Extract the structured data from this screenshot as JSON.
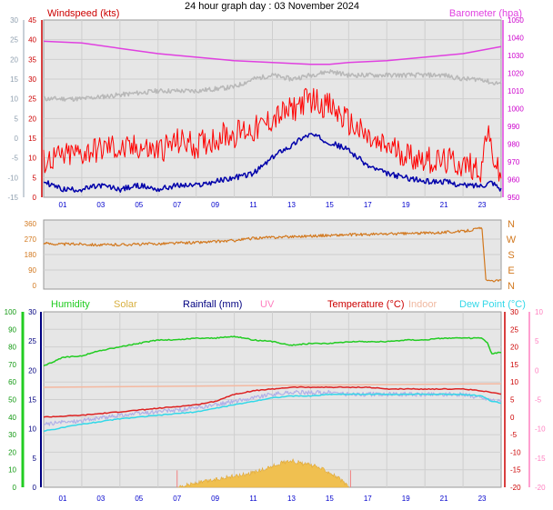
{
  "title": "24 hour graph day : 03 November 2024",
  "colors": {
    "wind": "#ff0000",
    "gust_line": "#0000aa",
    "baro": "#e040e0",
    "gray": "#b8b8b8",
    "dir": "#d2781e",
    "humidity": "#22cc22",
    "solar": "#f0c050",
    "rain": "#000080",
    "uv": "#ff80c0",
    "temp": "#dd2222",
    "indoor": "#f4b8a0",
    "dew": "#33d8e8",
    "grid": "#cfcfcf",
    "bg": "#e6e6e6",
    "axis_blue": "#0000cc",
    "axis_red": "#cc0000"
  },
  "chart_data": [
    {
      "type": "line",
      "title": "",
      "labels": {
        "left": "Windspeed (kts)",
        "right": "Barometer (hpa)"
      },
      "y_left": {
        "min": 0,
        "max": 45,
        "ticks": [
          "0",
          "5",
          "10",
          "15",
          "20",
          "25",
          "30",
          "35",
          "40",
          "45"
        ]
      },
      "y_right": {
        "min": 950,
        "max": 1050,
        "ticks": [
          "950",
          "960",
          "970",
          "980",
          "990",
          "1000",
          "1010",
          "1020",
          "1030",
          "1040",
          "1050"
        ]
      },
      "y_outer": {
        "ticks": [
          "-15",
          "-10",
          "-5",
          "0",
          "5",
          "10",
          "15",
          "20",
          "25",
          "30"
        ]
      },
      "x_ticks": [
        "01",
        "03",
        "05",
        "07",
        "09",
        "11",
        "13",
        "15",
        "17",
        "19",
        "21",
        "23"
      ],
      "series": [
        {
          "key": "gust",
          "x": [
            0,
            0.5,
            1,
            1.5,
            2,
            2.5,
            3,
            3.5,
            4,
            4.5,
            5,
            5.5,
            6,
            6.5,
            7,
            7.5,
            8,
            8.5,
            9,
            9.5,
            10,
            10.5,
            11,
            11.5,
            12,
            12.5,
            13,
            13.5,
            14,
            14.5,
            15,
            15.5,
            16,
            16.5,
            17,
            17.5,
            18,
            18.5,
            19,
            19.5,
            20,
            20.5,
            21,
            21.5,
            22,
            22.5,
            23,
            23.2,
            23.5,
            23.8,
            24
          ],
          "values": [
            9,
            10,
            10,
            11,
            11,
            12,
            12,
            13,
            12,
            12,
            13,
            12,
            12,
            13,
            14,
            14,
            13,
            14,
            15,
            16,
            16,
            17,
            17,
            18,
            20,
            21,
            22,
            24,
            25,
            24,
            23,
            21,
            19,
            17,
            15,
            13,
            13,
            12,
            11,
            10,
            10,
            9,
            9,
            9,
            8,
            8,
            7,
            17,
            12,
            7,
            4
          ]
        },
        {
          "key": "wind",
          "x": [
            0,
            1,
            2,
            3,
            4,
            5,
            6,
            7,
            8,
            9,
            10,
            11,
            11.5,
            12,
            12.5,
            13,
            13.5,
            14,
            14.5,
            15,
            15.5,
            16,
            16.5,
            17,
            17.5,
            18,
            19,
            20,
            21,
            22,
            23,
            23.5,
            24
          ],
          "values": [
            4,
            2,
            2,
            3,
            2,
            3,
            2,
            3,
            3,
            4,
            5,
            6,
            8,
            10,
            12,
            13,
            15,
            16,
            15,
            14,
            13,
            12,
            10,
            8,
            7,
            6,
            5,
            4,
            4,
            3,
            3,
            4,
            2
          ]
        },
        {
          "key": "gray",
          "x": [
            0,
            2,
            4,
            6,
            8,
            10,
            11,
            12,
            13,
            14,
            15,
            16,
            17,
            18,
            19,
            20,
            21,
            22,
            23,
            23.5,
            24
          ],
          "values": [
            25,
            25,
            26,
            27,
            27,
            28,
            30,
            31,
            30,
            31,
            32,
            31,
            31,
            31,
            31,
            31,
            31,
            30,
            30,
            29,
            29
          ]
        },
        {
          "key": "baro",
          "x": [
            0,
            2,
            4,
            6,
            8,
            10,
            12,
            14,
            15,
            16,
            18,
            20,
            22,
            24
          ],
          "values": [
            1038,
            1037,
            1034,
            1031,
            1029,
            1027,
            1026,
            1025,
            1025,
            1026,
            1027,
            1029,
            1031,
            1035
          ]
        }
      ]
    },
    {
      "type": "line",
      "title": "",
      "y_left": {
        "min": 0,
        "max": 360,
        "ticks": [
          "0",
          "90",
          "180",
          "270",
          "360"
        ]
      },
      "y_right_labels": [
        "N",
        "E",
        "S",
        "W",
        "N"
      ],
      "series": [
        {
          "key": "dir",
          "x": [
            0,
            1,
            2,
            3,
            4,
            5,
            6,
            7,
            8,
            9,
            10,
            11,
            12,
            13,
            14,
            15,
            16,
            17,
            18,
            19,
            20,
            21,
            22,
            23,
            23.2,
            23.4,
            24
          ],
          "values": [
            245,
            240,
            242,
            235,
            238,
            240,
            243,
            247,
            250,
            255,
            262,
            275,
            280,
            285,
            288,
            292,
            295,
            297,
            300,
            302,
            305,
            310,
            315,
            335,
            30,
            25,
            30
          ]
        }
      ]
    },
    {
      "type": "line",
      "title": "",
      "legend": [
        "Humidity",
        "Solar",
        "Rainfall (mm)",
        "UV",
        "Temperature (°C)",
        "Indoor",
        "Dew Point (°C)"
      ],
      "y_humidity": {
        "min": 0,
        "max": 100,
        "ticks": [
          "0",
          "10",
          "20",
          "30",
          "40",
          "50",
          "60",
          "70",
          "80",
          "90",
          "100"
        ]
      },
      "y_rain": {
        "min": 0,
        "max": 30,
        "ticks": [
          "0",
          "5",
          "10",
          "15",
          "20",
          "25",
          "30"
        ]
      },
      "y_temp": {
        "min": -20,
        "max": 30,
        "ticks": [
          "-20",
          "-15",
          "-10",
          "-5",
          "0",
          "5",
          "10",
          "15",
          "20",
          "25",
          "30"
        ]
      },
      "y_pink": {
        "min": -20,
        "max": 10,
        "ticks": [
          "-20",
          "-15",
          "-10",
          "-5",
          "0",
          "5",
          "10"
        ]
      },
      "series": [
        {
          "key": "humidity",
          "x": [
            0,
            1,
            2,
            3,
            4,
            5,
            6,
            7,
            8,
            9,
            10,
            11,
            12,
            13,
            14,
            15,
            16,
            17,
            18,
            19,
            20,
            21,
            22,
            23,
            23.3,
            23.5,
            24
          ],
          "values": [
            69,
            74,
            75,
            78,
            80,
            82,
            84,
            84,
            85,
            85,
            86,
            84,
            83,
            81,
            82,
            82,
            83,
            83,
            83,
            84,
            84,
            85,
            85,
            85,
            82,
            76,
            77
          ]
        },
        {
          "key": "indoor",
          "x": [
            0,
            24
          ],
          "values": [
            8.5,
            9.5
          ]
        },
        {
          "key": "temp",
          "x": [
            0,
            2,
            4,
            6,
            8,
            9,
            10,
            11,
            12,
            13,
            14,
            15,
            16,
            17,
            18,
            19,
            20,
            21,
            22,
            23,
            23.5,
            24
          ],
          "values": [
            0,
            0.5,
            1.5,
            2.5,
            3.5,
            4.5,
            6.5,
            7.5,
            8,
            8.5,
            8.5,
            8.5,
            8.5,
            8.5,
            8,
            8,
            8,
            8,
            8,
            7.5,
            7,
            6.5
          ]
        },
        {
          "key": "lavender",
          "x": [
            0,
            2,
            4,
            6,
            8,
            9,
            10,
            11,
            12,
            13,
            14,
            15,
            16,
            17,
            18,
            19,
            20,
            21,
            22,
            23,
            23.5,
            24
          ],
          "values": [
            -2,
            -1,
            0.5,
            1.5,
            2.5,
            3.5,
            4.5,
            5.5,
            6.5,
            7,
            7,
            7,
            6.5,
            6.5,
            6.5,
            6.5,
            6.5,
            6.5,
            6.5,
            5.5,
            5,
            4.5
          ]
        },
        {
          "key": "dew",
          "x": [
            0,
            2,
            4,
            6,
            8,
            9,
            10,
            11,
            12,
            13,
            14,
            15,
            16,
            17,
            18,
            19,
            20,
            21,
            22,
            23,
            23.5,
            24
          ],
          "values": [
            -4,
            -2,
            -0.5,
            0.5,
            1.5,
            2.5,
            3.5,
            4.5,
            5.5,
            6,
            6,
            6.5,
            6.5,
            6.5,
            6.5,
            6.5,
            6.5,
            6.5,
            6.5,
            6,
            4.5,
            4
          ]
        },
        {
          "key": "solar",
          "x": [
            7,
            7.5,
            8,
            8.5,
            9,
            9.5,
            10,
            10.5,
            11,
            11.5,
            12,
            12.5,
            13,
            13.5,
            14,
            14.5,
            15,
            15.5,
            16
          ],
          "values": [
            0,
            0.4,
            0.7,
            1.0,
            1.3,
            1.7,
            1.9,
            2.2,
            2.6,
            3.0,
            3.6,
            4.2,
            4.6,
            4.1,
            3.8,
            3.3,
            2.6,
            1.5,
            0
          ]
        }
      ]
    }
  ]
}
